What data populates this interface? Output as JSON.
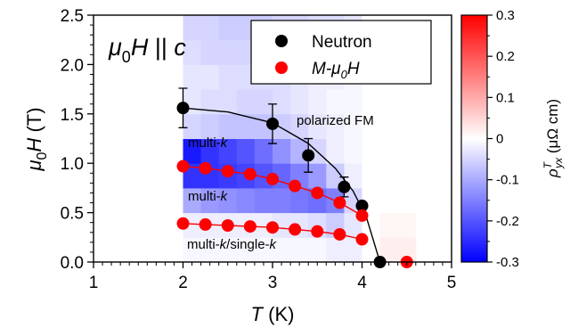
{
  "chart_data": {
    "type": "scatter",
    "x_axis": {
      "label_italic": "T",
      "label_rest": " (K)",
      "range": [
        1,
        5
      ],
      "ticks": [
        "1",
        "2",
        "3",
        "4",
        "5"
      ]
    },
    "y_axis": {
      "label_main": "μ",
      "label_sub": "0",
      "label_h": "H",
      "label_rest": " (T)",
      "range": [
        0,
        2.5
      ],
      "ticks": [
        "0.0",
        "0.5",
        "1.0",
        "1.5",
        "2.0",
        "2.5"
      ]
    },
    "field_condition": {
      "mu": "μ",
      "sub": "0",
      "h": "H",
      "rest": " || ",
      "c": "c"
    },
    "colorbar": {
      "label_rho": "ρ",
      "label_sup": "T",
      "label_sub": "yx",
      "label_unit": " (μΩ cm)",
      "range": [
        -0.3,
        0.3
      ],
      "ticks": [
        "0.3",
        "0.2",
        "0.1",
        "0",
        "-0.1",
        "-0.2",
        "-0.3"
      ],
      "colors": {
        "min": "#0000ff",
        "mid": "#ffffff",
        "max": "#ff0000"
      }
    },
    "legend": {
      "neutron": "Neutron",
      "mh_prefix": "M-",
      "mh_mu": "μ",
      "mh_sub": "0",
      "mh_h": "H"
    },
    "phase_labels": {
      "polarized": "polarized FM",
      "multi_k_top_prefix": "multi-",
      "multi_k_top_k": "k",
      "multi_k_mid_prefix": "multi-",
      "multi_k_mid_k": "k",
      "bottom_prefix": "multi-",
      "bottom_k1": "k",
      "bottom_mid": "/single-",
      "bottom_k2": "k"
    },
    "series": [
      {
        "kind": "neutron",
        "color": "#000000",
        "points": [
          {
            "x": 2.0,
            "y": 1.56,
            "err": 0.2
          },
          {
            "x": 3.0,
            "y": 1.4,
            "err": 0.2
          },
          {
            "x": 3.4,
            "y": 1.08,
            "err": 0.17
          },
          {
            "x": 3.8,
            "y": 0.76,
            "err": 0.1
          },
          {
            "x": 4.0,
            "y": 0.57,
            "err": 0.0
          },
          {
            "x": 4.2,
            "y": 0.0,
            "err": 0.0
          }
        ]
      },
      {
        "kind": "mh_upper",
        "color": "#ff0000",
        "points": [
          {
            "x": 2.0,
            "y": 0.97
          },
          {
            "x": 2.25,
            "y": 0.95
          },
          {
            "x": 2.5,
            "y": 0.92
          },
          {
            "x": 2.75,
            "y": 0.89
          },
          {
            "x": 3.0,
            "y": 0.84
          },
          {
            "x": 3.25,
            "y": 0.77
          },
          {
            "x": 3.5,
            "y": 0.7
          },
          {
            "x": 3.75,
            "y": 0.6
          },
          {
            "x": 4.0,
            "y": 0.47
          }
        ]
      },
      {
        "kind": "mh_lower",
        "color": "#ff0000",
        "points": [
          {
            "x": 2.0,
            "y": 0.39
          },
          {
            "x": 2.25,
            "y": 0.38
          },
          {
            "x": 2.5,
            "y": 0.37
          },
          {
            "x": 2.75,
            "y": 0.36
          },
          {
            "x": 3.0,
            "y": 0.35
          },
          {
            "x": 3.25,
            "y": 0.33
          },
          {
            "x": 3.5,
            "y": 0.31
          },
          {
            "x": 3.75,
            "y": 0.28
          },
          {
            "x": 4.0,
            "y": 0.23
          }
        ]
      },
      {
        "kind": "mh_zero",
        "color": "#ff0000",
        "points": [
          {
            "x": 4.5,
            "y": 0.0
          }
        ]
      }
    ],
    "boundary_curve": {
      "color": "#000000",
      "points": [
        {
          "x": 2.0,
          "y": 1.56
        },
        {
          "x": 2.5,
          "y": 1.52
        },
        {
          "x": 3.0,
          "y": 1.41
        },
        {
          "x": 3.4,
          "y": 1.2
        },
        {
          "x": 3.7,
          "y": 0.95
        },
        {
          "x": 3.9,
          "y": 0.72
        },
        {
          "x": 4.05,
          "y": 0.45
        },
        {
          "x": 4.15,
          "y": 0.15
        },
        {
          "x": 4.2,
          "y": 0.0
        }
      ]
    },
    "heatmap": {
      "x_start": 2.0,
      "x_end": 4.6,
      "y_start": 0.0,
      "y_end": 2.5,
      "nx": 13,
      "ny": 10,
      "values": [
        [
          -0.01,
          -0.01,
          -0.01,
          -0.01,
          -0.01,
          -0.01,
          -0.01,
          -0.01,
          -0.02,
          -0.02,
          0.0,
          0.02,
          0.02
        ],
        [
          -0.02,
          -0.02,
          -0.02,
          -0.02,
          -0.02,
          -0.03,
          -0.03,
          -0.04,
          -0.06,
          -0.03,
          0.0,
          0.01,
          0.01
        ],
        [
          -0.1,
          -0.12,
          -0.13,
          -0.14,
          -0.15,
          -0.15,
          -0.16,
          -0.17,
          -0.15,
          -0.05,
          0.0,
          0.0,
          0.0
        ],
        [
          -0.24,
          -0.24,
          -0.23,
          -0.22,
          -0.2,
          -0.18,
          -0.15,
          -0.12,
          -0.06,
          -0.02,
          0.0,
          0.0,
          0.0
        ],
        [
          -0.27,
          -0.24,
          -0.22,
          -0.2,
          -0.17,
          -0.13,
          -0.09,
          -0.05,
          -0.02,
          -0.01,
          0.0,
          0.0,
          0.0
        ],
        [
          -0.05,
          -0.06,
          -0.07,
          -0.07,
          -0.07,
          -0.06,
          -0.05,
          -0.03,
          -0.02,
          -0.01,
          0.0,
          0.0,
          0.0
        ],
        [
          -0.03,
          -0.04,
          -0.04,
          -0.05,
          -0.05,
          -0.04,
          -0.03,
          -0.02,
          -0.01,
          -0.01,
          0.0,
          0.0,
          0.0
        ],
        [
          -0.03,
          -0.03,
          -0.04,
          -0.04,
          -0.04,
          -0.04,
          -0.03,
          -0.02,
          -0.02,
          -0.01,
          0.0,
          0.0,
          0.0
        ],
        [
          -0.04,
          -0.05,
          -0.05,
          -0.05,
          -0.05,
          -0.05,
          -0.04,
          -0.04,
          -0.03,
          -0.02,
          0.0,
          0.0,
          0.0
        ],
        [
          -0.05,
          -0.05,
          -0.06,
          -0.06,
          -0.06,
          -0.05,
          -0.05,
          -0.04,
          -0.04,
          -0.03,
          0.0,
          0.0,
          0.0
        ]
      ]
    }
  }
}
